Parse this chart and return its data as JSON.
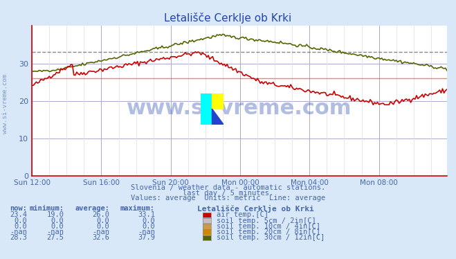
{
  "title": "Letališče Cerklje ob Krki",
  "bg_color": "#d8e8f8",
  "plot_bg_color": "#ffffff",
  "grid_color_major": "#aaaacc",
  "grid_color_minor": "#ddddee",
  "text_color": "#4466aa",
  "title_color": "#2244aa",
  "ylim": [
    0,
    40
  ],
  "yticks": [
    0,
    10,
    20,
    30
  ],
  "xlabel_ticks": [
    "Sun 12:00",
    "Sun 16:00",
    "Sun 20:00",
    "Mon 00:00",
    "Mon 04:00",
    "Mon 08:00"
  ],
  "n_points": 288,
  "air_temp_color": "#cc0000",
  "soil30_color": "#556600",
  "dashed_line_color": "#555555",
  "red_hline_y": 26.0,
  "dashed_hline_y": 33.1,
  "watermark_text": "www.si-vreme.com",
  "watermark_color": "#2244aa",
  "watermark_alpha": 0.35,
  "footer_line1": "Slovenia / weather data - automatic stations.",
  "footer_line2": "last day / 5 minutes.",
  "footer_line3": "Values: average  Units: metric  Line: average",
  "table_headers": [
    "now:",
    "minimum:",
    "average:",
    "maximum:",
    ""
  ],
  "table_col1": [
    "23.4",
    "0.0",
    "0.0",
    "-nan",
    "28.3"
  ],
  "table_col2": [
    "19.0",
    "0.0",
    "0.0",
    "-nan",
    "27.5"
  ],
  "table_col3": [
    "26.0",
    "0.0",
    "0.0",
    "-nan",
    "32.6"
  ],
  "table_col4": [
    "33.1",
    "0.0",
    "0.0",
    "-nan",
    "37.9"
  ],
  "legend_colors": [
    "#cc0000",
    "#ccbbbb",
    "#cc9944",
    "#cc8800",
    "#556600"
  ],
  "legend_labels": [
    "air temp.[C]",
    "soil temp. 5cm / 2in[C]",
    "soil temp. 10cm / 4in[C]",
    "soil temp. 20cm / 8in[C]",
    "soil temp. 30cm / 12in[C]"
  ],
  "station_label": "Letališče Cerklje ob Krki"
}
